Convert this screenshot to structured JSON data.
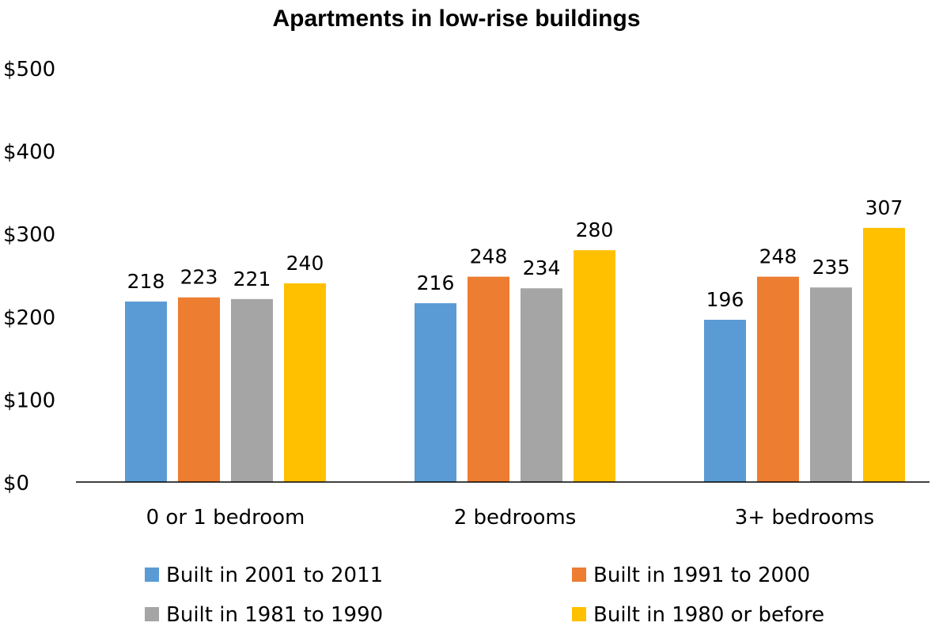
{
  "chart_data": {
    "type": "bar",
    "title": "Apartments in low-rise buildings",
    "xlabel": "",
    "ylabel": "",
    "ylim": [
      0,
      500
    ],
    "yticks": [
      0,
      100,
      200,
      300,
      400,
      500
    ],
    "ytick_labels": [
      "$0",
      "$100",
      "$200",
      "$300",
      "$400",
      "$500"
    ],
    "grid": false,
    "legend_position": "bottom",
    "categories": [
      "0 or 1 bedroom",
      "2 bedrooms",
      "3+ bedrooms"
    ],
    "series": [
      {
        "name": "Built in 2001 to 2011",
        "color": "#5B9BD5",
        "values": [
          218,
          216,
          196
        ]
      },
      {
        "name": "Built in 1991 to 2000",
        "color": "#ED7D31",
        "values": [
          223,
          248,
          248
        ]
      },
      {
        "name": "Built in 1981 to 1990",
        "color": "#A5A5A5",
        "values": [
          221,
          234,
          235
        ]
      },
      {
        "name": "Built in 1980 or before",
        "color": "#FFC000",
        "values": [
          240,
          280,
          307
        ]
      }
    ]
  }
}
